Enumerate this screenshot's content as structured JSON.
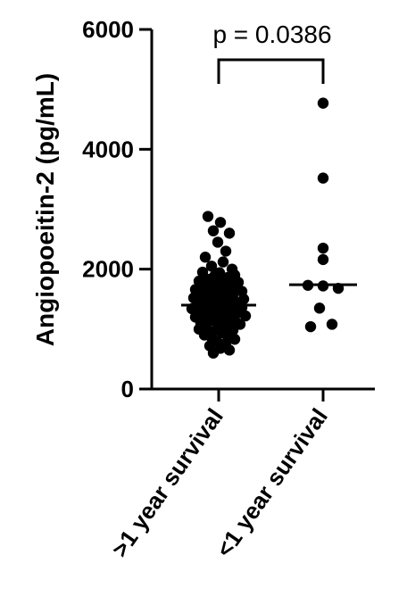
{
  "chart_data": {
    "type": "scatter",
    "plot_style": "dot plot with median line",
    "title": "",
    "xlabel": "",
    "ylabel": "Angiopoeitin-2 (pg/mL)",
    "ylim": [
      0,
      6000
    ],
    "yticks": [
      0,
      2000,
      4000,
      6000
    ],
    "ytick_labels": [
      "0",
      "2000",
      "4000",
      "6000"
    ],
    "categories": [
      ">1 year survival",
      "<1 year survival"
    ],
    "series": [
      {
        "category": ">1 year survival",
        "median": 1400,
        "points": [
          [
            -0.12,
            2880
          ],
          [
            0.02,
            2780
          ],
          [
            -0.06,
            2640
          ],
          [
            0.12,
            2600
          ],
          [
            -0.01,
            2450
          ],
          [
            0.08,
            2300
          ],
          [
            -0.15,
            2200
          ],
          [
            0.05,
            2120
          ],
          [
            -0.08,
            2050
          ],
          [
            0.15,
            2000
          ],
          [
            -0.18,
            1950
          ],
          [
            0.01,
            1940
          ],
          [
            0.18,
            1900
          ],
          [
            -0.05,
            1880
          ],
          [
            0.1,
            1860
          ],
          [
            -0.12,
            1830
          ],
          [
            0.03,
            1810
          ],
          [
            -0.22,
            1800
          ],
          [
            0.22,
            1780
          ],
          [
            -0.01,
            1760
          ],
          [
            0.13,
            1740
          ],
          [
            -0.16,
            1720
          ],
          [
            0.06,
            1700
          ],
          [
            -0.08,
            1690
          ],
          [
            0.2,
            1680
          ],
          [
            -0.26,
            1660
          ],
          [
            0.0,
            1640
          ],
          [
            0.26,
            1630
          ],
          [
            -0.13,
            1620
          ],
          [
            0.1,
            1600
          ],
          [
            -0.2,
            1580
          ],
          [
            0.16,
            1570
          ],
          [
            -0.04,
            1560
          ],
          [
            0.04,
            1540
          ],
          [
            -0.28,
            1520
          ],
          [
            0.28,
            1500
          ],
          [
            -0.1,
            1490
          ],
          [
            0.12,
            1480
          ],
          [
            -0.18,
            1460
          ],
          [
            0.02,
            1450
          ],
          [
            0.22,
            1440
          ],
          [
            -0.06,
            1430
          ],
          [
            0.08,
            1420
          ],
          [
            -0.24,
            1400
          ],
          [
            0.18,
            1390
          ],
          [
            -0.14,
            1380
          ],
          [
            0.0,
            1370
          ],
          [
            0.26,
            1360
          ],
          [
            -0.3,
            1340
          ],
          [
            0.06,
            1330
          ],
          [
            -0.08,
            1320
          ],
          [
            0.14,
            1300
          ],
          [
            -0.2,
            1290
          ],
          [
            0.22,
            1280
          ],
          [
            -0.02,
            1270
          ],
          [
            0.1,
            1250
          ],
          [
            -0.16,
            1230
          ],
          [
            0.3,
            1220
          ],
          [
            -0.26,
            1200
          ],
          [
            0.04,
            1190
          ],
          [
            -0.1,
            1170
          ],
          [
            0.18,
            1150
          ],
          [
            -0.04,
            1130
          ],
          [
            0.12,
            1110
          ],
          [
            -0.2,
            1100
          ],
          [
            0.24,
            1080
          ],
          [
            0.0,
            1060
          ],
          [
            -0.14,
            1040
          ],
          [
            0.08,
            1020
          ],
          [
            -0.22,
            1000
          ],
          [
            0.16,
            980
          ],
          [
            -0.06,
            960
          ],
          [
            0.04,
            940
          ],
          [
            -0.16,
            900
          ],
          [
            0.1,
            880
          ],
          [
            -0.08,
            860
          ],
          [
            0.18,
            830
          ],
          [
            -0.02,
            800
          ],
          [
            0.08,
            760
          ],
          [
            -0.1,
            720
          ],
          [
            0.02,
            680
          ],
          [
            0.12,
            650
          ],
          [
            -0.06,
            600
          ]
        ]
      },
      {
        "category": "<1 year survival",
        "median": 1740,
        "points": [
          [
            0.0,
            4770
          ],
          [
            0.0,
            3520
          ],
          [
            0.0,
            2350
          ],
          [
            0.0,
            2160
          ],
          [
            -0.17,
            1730
          ],
          [
            0.0,
            1720
          ],
          [
            0.17,
            1680
          ],
          [
            -0.04,
            1350
          ],
          [
            -0.14,
            1040
          ],
          [
            0.1,
            1080
          ]
        ]
      }
    ],
    "annotation": {
      "text": "p = 0.0386",
      "between": [
        ">1 year survival",
        "<1 year survival"
      ]
    }
  }
}
